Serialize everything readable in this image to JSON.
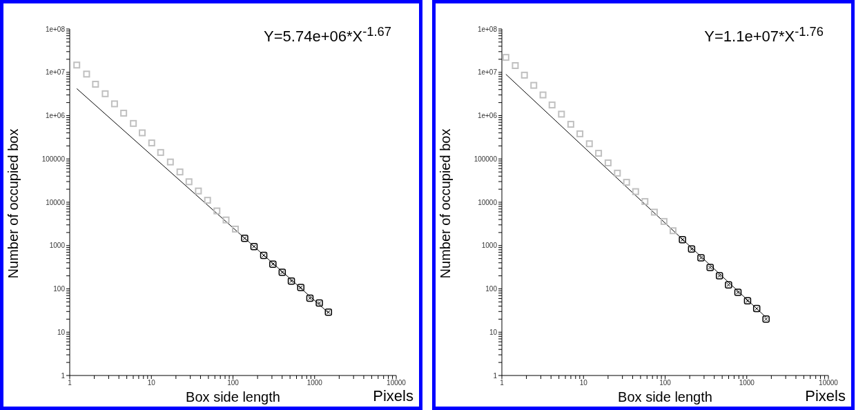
{
  "chart_data": [
    {
      "type": "scatter",
      "xlabel": "Box side length",
      "ylabel": "Number of occupied box",
      "annotations": [
        "Y=5.74e+06*X$^{-1.67}$",
        "Pixels"
      ],
      "log": "xy",
      "xlim": [
        1,
        10000
      ],
      "ylim": [
        1,
        100000000
      ],
      "xticks": [
        1,
        {
          "value": 2,
          "label": null
        },
        {
          "value": 3,
          "label": null
        },
        {
          "value": 4,
          "label": null
        },
        {
          "value": 5,
          "label": null
        },
        {
          "value": 6,
          "label": null
        },
        {
          "value": 7,
          "label": null
        },
        {
          "value": 8,
          "label": null
        },
        {
          "value": 9,
          "label": null
        },
        10,
        {
          "value": 20,
          "label": null
        },
        {
          "value": 30,
          "label": null
        },
        {
          "value": 40,
          "label": null
        },
        {
          "value": 50,
          "label": null
        },
        {
          "value": 60,
          "label": null
        },
        {
          "value": 70,
          "label": null
        },
        {
          "value": 80,
          "label": null
        },
        {
          "value": 90,
          "label": null
        },
        100,
        {
          "value": 200,
          "label": null
        },
        {
          "value": 300,
          "label": null
        },
        {
          "value": 400,
          "label": null
        },
        {
          "value": 500,
          "label": null
        },
        {
          "value": 600,
          "label": null
        },
        {
          "value": 700,
          "label": null
        },
        {
          "value": 800,
          "label": null
        },
        {
          "value": 900,
          "label": null
        },
        1000,
        {
          "value": 2000,
          "label": null
        },
        {
          "value": 3000,
          "label": null
        },
        {
          "value": 4000,
          "label": null
        },
        {
          "value": 5000,
          "label": null
        },
        {
          "value": 6000,
          "label": null
        },
        {
          "value": 7000,
          "label": null
        },
        {
          "value": 8000,
          "label": null
        },
        {
          "value": 9000,
          "label": null
        },
        10000
      ],
      "yticks": [
        1,
        {
          "value": 2,
          "label": null
        },
        {
          "value": 3,
          "label": null
        },
        {
          "value": 4,
          "label": null
        },
        {
          "value": 5,
          "label": null
        },
        {
          "value": 6,
          "label": null
        },
        {
          "value": 7,
          "label": null
        },
        {
          "value": 8,
          "label": null
        },
        {
          "value": 9,
          "label": null
        },
        10,
        {
          "value": 20,
          "label": null
        },
        {
          "value": 30,
          "label": null
        },
        {
          "value": 40,
          "label": null
        },
        {
          "value": 50,
          "label": null
        },
        {
          "value": 60,
          "label": null
        },
        {
          "value": 70,
          "label": null
        },
        {
          "value": 80,
          "label": null
        },
        {
          "value": 90,
          "label": null
        },
        100,
        {
          "value": 200,
          "label": null
        },
        {
          "value": 300,
          "label": null
        },
        {
          "value": 400,
          "label": null
        },
        {
          "value": 500,
          "label": null
        },
        {
          "value": 600,
          "label": null
        },
        {
          "value": 700,
          "label": null
        },
        {
          "value": 800,
          "label": null
        },
        {
          "value": 900,
          "label": null
        },
        1000,
        {
          "value": 2000,
          "label": null
        },
        {
          "value": 3000,
          "label": null
        },
        {
          "value": 4000,
          "label": null
        },
        {
          "value": 5000,
          "label": null
        },
        {
          "value": 6000,
          "label": null
        },
        {
          "value": 7000,
          "label": null
        },
        {
          "value": 8000,
          "label": null
        },
        {
          "value": 9000,
          "label": null
        },
        10000,
        {
          "value": 20000,
          "label": null
        },
        {
          "value": 30000,
          "label": null
        },
        {
          "value": 40000,
          "label": null
        },
        {
          "value": 50000,
          "label": null
        },
        {
          "value": 60000,
          "label": null
        },
        {
          "value": 70000,
          "label": null
        },
        {
          "value": 80000,
          "label": null
        },
        {
          "value": 90000,
          "label": null
        },
        100000,
        {
          "value": 200000,
          "label": null
        },
        {
          "value": 300000,
          "label": null
        },
        {
          "value": 400000,
          "label": null
        },
        {
          "value": 500000,
          "label": null
        },
        {
          "value": 600000,
          "label": null
        },
        {
          "value": 700000,
          "label": null
        },
        {
          "value": 800000,
          "label": null
        },
        {
          "value": 900000,
          "label": null
        },
        {
          "value": 1000000,
          "label": "1e+06"
        },
        {
          "value": 2000000,
          "label": null
        },
        {
          "value": 3000000,
          "label": null
        },
        {
          "value": 4000000,
          "label": null
        },
        {
          "value": 5000000,
          "label": null
        },
        {
          "value": 6000000,
          "label": null
        },
        {
          "value": 7000000,
          "label": null
        },
        {
          "value": 8000000,
          "label": null
        },
        {
          "value": 9000000,
          "label": null
        },
        {
          "value": 10000000,
          "label": "1e+07"
        },
        {
          "value": 20000000,
          "label": null
        },
        {
          "value": 30000000,
          "label": null
        },
        {
          "value": 40000000,
          "label": null
        },
        {
          "value": 50000000,
          "label": null
        },
        {
          "value": 60000000,
          "label": null
        },
        {
          "value": 70000000,
          "label": null
        },
        {
          "value": 80000000,
          "label": null
        },
        {
          "value": 90000000,
          "label": null
        },
        {
          "value": 100000000,
          "label": "1e+08"
        }
      ],
      "series": [
        {
          "marker": "square",
          "color": "#c0c0c0",
          "x": [
            1.22,
            1.61,
            2.07,
            2.72,
            3.54,
            4.58,
            6.02,
            7.73,
            10.1,
            13,
            17.1,
            22.4,
            28.9,
            37.7,
            48.8,
            63.6,
            82.3,
            107
          ],
          "values": [
            14700000,
            9100000,
            5300000,
            3200000,
            1870000,
            1140000,
            660000,
            400000,
            234000,
            141000,
            85000,
            50000,
            29700,
            18200,
            11100,
            6300,
            3900,
            2400
          ]
        },
        {
          "marker": "square",
          "color": "#000000",
          "x": [
            139,
            181,
            238,
            308,
            401,
            519,
            677,
            876,
            1142,
            1477
          ],
          "values": [
            1470,
            950,
            594,
            373,
            241,
            151,
            108,
            61,
            47,
            29
          ]
        },
        {
          "type": "line",
          "color": "#000000",
          "x": [
            1.22,
            1477
          ],
          "values": [
            4200000,
            28
          ]
        }
      ]
    },
    {
      "type": "scatter",
      "xlabel": "Box side length",
      "ylabel": "Number of occupied box",
      "annotations": [
        "Y=1.1e+07*X$^{-1.76}$",
        "Pixels"
      ],
      "log": "xy",
      "xlim": [
        1,
        10000
      ],
      "ylim": [
        1,
        100000000
      ],
      "xticks": [
        1,
        {
          "value": 2,
          "label": null
        },
        {
          "value": 3,
          "label": null
        },
        {
          "value": 4,
          "label": null
        },
        {
          "value": 5,
          "label": null
        },
        {
          "value": 6,
          "label": null
        },
        {
          "value": 7,
          "label": null
        },
        {
          "value": 8,
          "label": null
        },
        {
          "value": 9,
          "label": null
        },
        10,
        {
          "value": 20,
          "label": null
        },
        {
          "value": 30,
          "label": null
        },
        {
          "value": 40,
          "label": null
        },
        {
          "value": 50,
          "label": null
        },
        {
          "value": 60,
          "label": null
        },
        {
          "value": 70,
          "label": null
        },
        {
          "value": 80,
          "label": null
        },
        {
          "value": 90,
          "label": null
        },
        100,
        {
          "value": 200,
          "label": null
        },
        {
          "value": 300,
          "label": null
        },
        {
          "value": 400,
          "label": null
        },
        {
          "value": 500,
          "label": null
        },
        {
          "value": 600,
          "label": null
        },
        {
          "value": 700,
          "label": null
        },
        {
          "value": 800,
          "label": null
        },
        {
          "value": 900,
          "label": null
        },
        1000,
        {
          "value": 2000,
          "label": null
        },
        {
          "value": 3000,
          "label": null
        },
        {
          "value": 4000,
          "label": null
        },
        {
          "value": 5000,
          "label": null
        },
        {
          "value": 6000,
          "label": null
        },
        {
          "value": 7000,
          "label": null
        },
        {
          "value": 8000,
          "label": null
        },
        {
          "value": 9000,
          "label": null
        },
        10000
      ],
      "yticks": [
        1,
        {
          "value": 2,
          "label": null
        },
        {
          "value": 3,
          "label": null
        },
        {
          "value": 4,
          "label": null
        },
        {
          "value": 5,
          "label": null
        },
        {
          "value": 6,
          "label": null
        },
        {
          "value": 7,
          "label": null
        },
        {
          "value": 8,
          "label": null
        },
        {
          "value": 9,
          "label": null
        },
        10,
        {
          "value": 20,
          "label": null
        },
        {
          "value": 30,
          "label": null
        },
        {
          "value": 40,
          "label": null
        },
        {
          "value": 50,
          "label": null
        },
        {
          "value": 60,
          "label": null
        },
        {
          "value": 70,
          "label": null
        },
        {
          "value": 80,
          "label": null
        },
        {
          "value": 90,
          "label": null
        },
        100,
        {
          "value": 200,
          "label": null
        },
        {
          "value": 300,
          "label": null
        },
        {
          "value": 400,
          "label": null
        },
        {
          "value": 500,
          "label": null
        },
        {
          "value": 600,
          "label": null
        },
        {
          "value": 700,
          "label": null
        },
        {
          "value": 800,
          "label": null
        },
        {
          "value": 900,
          "label": null
        },
        1000,
        {
          "value": 2000,
          "label": null
        },
        {
          "value": 3000,
          "label": null
        },
        {
          "value": 4000,
          "label": null
        },
        {
          "value": 5000,
          "label": null
        },
        {
          "value": 6000,
          "label": null
        },
        {
          "value": 7000,
          "label": null
        },
        {
          "value": 8000,
          "label": null
        },
        {
          "value": 9000,
          "label": null
        },
        10000,
        {
          "value": 20000,
          "label": null
        },
        {
          "value": 30000,
          "label": null
        },
        {
          "value": 40000,
          "label": null
        },
        {
          "value": 50000,
          "label": null
        },
        {
          "value": 60000,
          "label": null
        },
        {
          "value": 70000,
          "label": null
        },
        {
          "value": 80000,
          "label": null
        },
        {
          "value": 90000,
          "label": null
        },
        100000,
        {
          "value": 200000,
          "label": null
        },
        {
          "value": 300000,
          "label": null
        },
        {
          "value": 400000,
          "label": null
        },
        {
          "value": 500000,
          "label": null
        },
        {
          "value": 600000,
          "label": null
        },
        {
          "value": 700000,
          "label": null
        },
        {
          "value": 800000,
          "label": null
        },
        {
          "value": 900000,
          "label": null
        },
        {
          "value": 1000000,
          "label": "1e+06"
        },
        {
          "value": 2000000,
          "label": null
        },
        {
          "value": 3000000,
          "label": null
        },
        {
          "value": 4000000,
          "label": null
        },
        {
          "value": 5000000,
          "label": null
        },
        {
          "value": 6000000,
          "label": null
        },
        {
          "value": 7000000,
          "label": null
        },
        {
          "value": 8000000,
          "label": null
        },
        {
          "value": 9000000,
          "label": null
        },
        {
          "value": 10000000,
          "label": "1e+07"
        },
        {
          "value": 20000000,
          "label": null
        },
        {
          "value": 30000000,
          "label": null
        },
        {
          "value": 40000000,
          "label": null
        },
        {
          "value": 50000000,
          "label": null
        },
        {
          "value": 60000000,
          "label": null
        },
        {
          "value": 70000000,
          "label": null
        },
        {
          "value": 80000000,
          "label": null
        },
        {
          "value": 90000000,
          "label": null
        },
        {
          "value": 100000000,
          "label": "1e+08"
        }
      ],
      "series": [
        {
          "marker": "square",
          "color": "#c0c0c0",
          "x": [
            1.12,
            1.46,
            1.89,
            2.46,
            3.19,
            4.12,
            5.37,
            6.99,
            9.04,
            11.8,
            15.3,
            20,
            26,
            33.7,
            43.5,
            56.6,
            73.8,
            96.9,
            125
          ],
          "values": [
            22100000,
            14300000,
            8600000,
            5000000,
            3000000,
            1760000,
            1080000,
            630000,
            380000,
            224000,
            135000,
            81000,
            47000,
            28900,
            17600,
            10400,
            5900,
            3600,
            2200
          ]
        },
        {
          "marker": "square",
          "color": "#000000",
          "x": [
            163,
            211,
            275,
            356,
            463,
            598,
            780,
            1023,
            1324,
            1723
          ],
          "values": [
            1360,
            830,
            520,
            312,
            201,
            124,
            83,
            53,
            35,
            20
          ]
        },
        {
          "type": "line",
          "color": "#000000",
          "x": [
            1.12,
            1723
          ],
          "values": [
            9000000,
            22
          ]
        }
      ]
    }
  ]
}
